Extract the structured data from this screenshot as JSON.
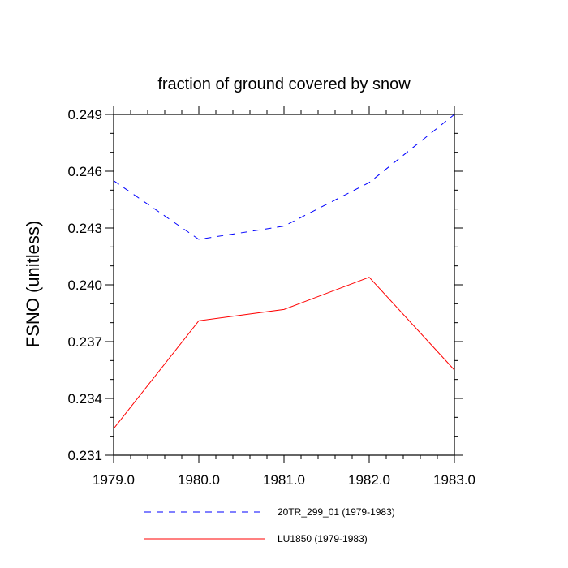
{
  "chart_data": {
    "type": "line",
    "title": "fraction of ground covered by snow",
    "xlabel": "",
    "ylabel": "FSNO  (unitless)",
    "xlim": [
      1979.0,
      1983.0
    ],
    "ylim": [
      0.231,
      0.249
    ],
    "x_ticks": [
      1979.0,
      1980.0,
      1981.0,
      1982.0,
      1983.0
    ],
    "x_tick_labels": [
      "1979.0",
      "1980.0",
      "1981.0",
      "1982.0",
      "1983.0"
    ],
    "y_ticks": [
      0.231,
      0.234,
      0.237,
      0.24,
      0.243,
      0.246,
      0.249
    ],
    "y_tick_labels": [
      "0.231",
      "0.234",
      "0.237",
      "0.240",
      "0.243",
      "0.246",
      "0.249"
    ],
    "grid": false,
    "legend_position": "bottom",
    "x": [
      1979.0,
      1980.0,
      1981.0,
      1982.0,
      1983.0
    ],
    "series": [
      {
        "name": "20TR_299_01 (1979-1983)",
        "values": [
          0.2455,
          0.2424,
          0.2431,
          0.2454,
          0.249
        ],
        "color": "#0000ff",
        "dash": "dashed"
      },
      {
        "name": "LU1850 (1979-1983)",
        "values": [
          0.2324,
          0.2381,
          0.2387,
          0.2404,
          0.2355
        ],
        "color": "#ff0000",
        "dash": "solid"
      }
    ]
  }
}
